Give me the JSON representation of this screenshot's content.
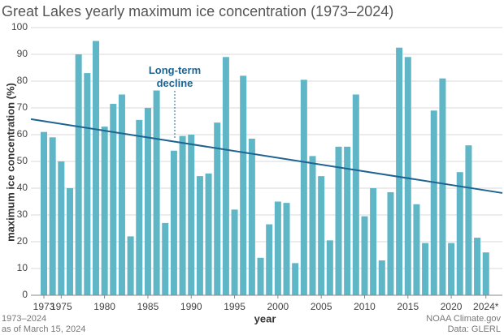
{
  "chart_data": {
    "type": "bar",
    "title": "Great Lakes yearly maximum ice concentration (1973–2024)",
    "x_label": "year",
    "y_label": "maximum ice concentration (%)",
    "annotation": "Long-term decline",
    "footnote_left": [
      "1973–2024",
      "as of March 15, 2024"
    ],
    "footnote_right": [
      "NOAA Climate.gov",
      "Data: GLERL"
    ],
    "color": "#5eb6c6",
    "x": [
      1973,
      1974,
      1975,
      1976,
      1977,
      1978,
      1979,
      1980,
      1981,
      1982,
      1983,
      1984,
      1985,
      1986,
      1987,
      1988,
      1989,
      1990,
      1991,
      1992,
      1993,
      1994,
      1995,
      1996,
      1997,
      1998,
      1999,
      2000,
      2001,
      2002,
      2003,
      2004,
      2005,
      2006,
      2007,
      2008,
      2009,
      2010,
      2011,
      2012,
      2013,
      2014,
      2015,
      2016,
      2017,
      2018,
      2019,
      2020,
      2021,
      2022,
      2023,
      2024
    ],
    "values": [
      61,
      59,
      50,
      40,
      90,
      83,
      95,
      63,
      71.5,
      75,
      22,
      65.5,
      70,
      76.5,
      27,
      54,
      59.5,
      60,
      44.5,
      45.5,
      64.5,
      89,
      32,
      82,
      58.5,
      14,
      26.5,
      35,
      34.5,
      12,
      80.5,
      52,
      44.5,
      20.5,
      55.5,
      55.5,
      75,
      29.5,
      40,
      13,
      38.5,
      92.5,
      89,
      34,
      19.5,
      69,
      81,
      19.5,
      46,
      56,
      21.5,
      16
    ],
    "trend": {
      "color": "#1f6491",
      "x": [
        1971.5,
        2025.9
      ],
      "values": [
        65.8,
        38.2
      ]
    },
    "xlim": [
      1971.5,
      2025.9
    ],
    "xticks": [
      1973,
      1975,
      1980,
      1985,
      1990,
      1995,
      2000,
      2005,
      2010,
      2015,
      2020,
      {
        "value": 2024,
        "label": "2024*"
      }
    ],
    "ylim": [
      0,
      100
    ],
    "yticks": [
      0,
      10,
      20,
      30,
      40,
      50,
      60,
      70,
      80,
      90,
      100
    ],
    "grid": true
  }
}
